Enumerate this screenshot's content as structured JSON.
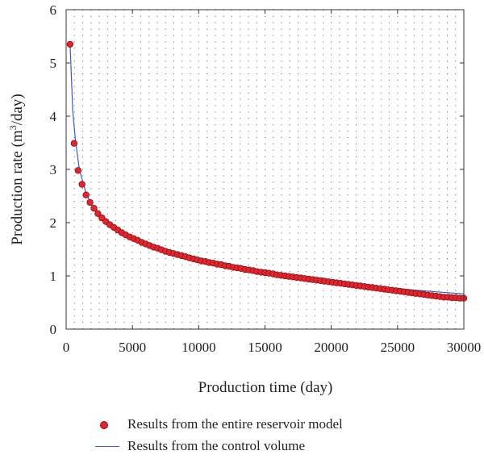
{
  "chart_data": {
    "type": "scatter",
    "xlabel": "Production time (day)",
    "ylabel_main": "Production rate (m",
    "ylabel_sup": "3",
    "ylabel_tail": "/day)",
    "xlim": [
      0,
      30000
    ],
    "ylim": [
      0,
      6
    ],
    "xticks": [
      "0",
      "5000",
      "10000",
      "15000",
      "20000",
      "25000",
      "30000"
    ],
    "yticks": [
      "0",
      "1",
      "2",
      "3",
      "4",
      "5",
      "6"
    ],
    "grid": "dotted",
    "legend_position": "bottom",
    "series": [
      {
        "name": "Results from the entire reservoir model",
        "style": "markers",
        "color": "#e8212b",
        "x": [
          300,
          600,
          900,
          1200,
          1500,
          1800,
          2100,
          2400,
          2700,
          3000,
          3300,
          3600,
          3900,
          4200,
          4500,
          4800,
          5100,
          5400,
          5700,
          6000,
          6300,
          6600,
          6900,
          7200,
          7500,
          7800,
          8100,
          8400,
          8700,
          9000,
          9300,
          9600,
          9900,
          10200,
          10500,
          10800,
          11100,
          11400,
          11700,
          12000,
          12300,
          12600,
          12900,
          13200,
          13500,
          13800,
          14100,
          14400,
          14700,
          15000,
          15300,
          15600,
          15900,
          16200,
          16500,
          16800,
          17100,
          17400,
          17700,
          18000,
          18300,
          18600,
          18900,
          19200,
          19500,
          19800,
          20100,
          20400,
          20700,
          21000,
          21300,
          21600,
          21900,
          22200,
          22500,
          22800,
          23100,
          23400,
          23700,
          24000,
          24300,
          24600,
          24900,
          25200,
          25500,
          25800,
          26100,
          26400,
          26700,
          27000,
          27300,
          27600,
          27900,
          28200,
          28500,
          28800,
          29100,
          29400,
          29700,
          30000
        ],
        "y": [
          5.35,
          3.49,
          2.98,
          2.72,
          2.52,
          2.38,
          2.27,
          2.17,
          2.09,
          2.02,
          1.96,
          1.91,
          1.86,
          1.81,
          1.77,
          1.73,
          1.7,
          1.67,
          1.63,
          1.6,
          1.57,
          1.54,
          1.52,
          1.49,
          1.46,
          1.44,
          1.42,
          1.4,
          1.38,
          1.36,
          1.34,
          1.32,
          1.3,
          1.28,
          1.27,
          1.25,
          1.24,
          1.22,
          1.21,
          1.19,
          1.18,
          1.16,
          1.15,
          1.14,
          1.12,
          1.11,
          1.1,
          1.08,
          1.07,
          1.06,
          1.05,
          1.04,
          1.02,
          1.01,
          1.0,
          0.99,
          0.98,
          0.97,
          0.96,
          0.95,
          0.94,
          0.93,
          0.92,
          0.91,
          0.9,
          0.89,
          0.88,
          0.87,
          0.86,
          0.85,
          0.84,
          0.83,
          0.82,
          0.81,
          0.8,
          0.79,
          0.78,
          0.77,
          0.76,
          0.75,
          0.74,
          0.73,
          0.72,
          0.71,
          0.7,
          0.69,
          0.68,
          0.67,
          0.66,
          0.65,
          0.64,
          0.63,
          0.62,
          0.61,
          0.6,
          0.6,
          0.59,
          0.59,
          0.58,
          0.58
        ]
      },
      {
        "name": "Results from the control volume",
        "style": "line",
        "color": "#3a5bc7",
        "x": [
          300,
          500,
          700,
          1000,
          1500,
          2000,
          2500,
          3000,
          4000,
          5000,
          6000,
          7000,
          8000,
          9000,
          10000,
          12000,
          14000,
          16000,
          18000,
          20000,
          22000,
          24000,
          26000,
          28000,
          30000
        ],
        "y": [
          5.35,
          4.1,
          3.55,
          3.0,
          2.55,
          2.3,
          2.13,
          2.01,
          1.82,
          1.68,
          1.57,
          1.48,
          1.41,
          1.35,
          1.3,
          1.2,
          1.11,
          1.03,
          0.96,
          0.9,
          0.84,
          0.79,
          0.74,
          0.7,
          0.66
        ]
      }
    ]
  }
}
